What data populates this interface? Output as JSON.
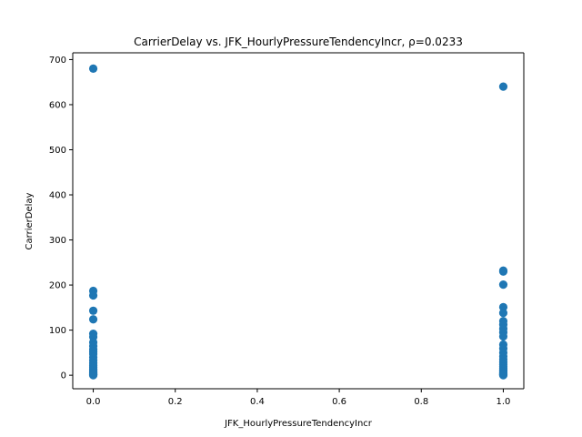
{
  "chart_data": {
    "type": "scatter",
    "title": "CarrierDelay vs. JFK_HourlyPressureTendencyIncr, ρ=0.0233",
    "xlabel": "JFK_HourlyPressureTendencyIncr",
    "ylabel": "CarrierDelay",
    "xlim": [
      -0.05,
      1.05
    ],
    "ylim": [
      -30,
      715
    ],
    "xticks": [
      0.0,
      0.2,
      0.4,
      0.6,
      0.8,
      1.0
    ],
    "xtick_labels": [
      "0.0",
      "0.2",
      "0.4",
      "0.6",
      "0.8",
      "1.0"
    ],
    "yticks": [
      0,
      100,
      200,
      300,
      400,
      500,
      600,
      700
    ],
    "ytick_labels": [
      "0",
      "100",
      "200",
      "300",
      "400",
      "500",
      "600",
      "700"
    ],
    "grid": false,
    "marker_color": "#1f77b4",
    "series": [
      {
        "points": [
          [
            0,
            680
          ],
          [
            0,
            187
          ],
          [
            0,
            177
          ],
          [
            0,
            143
          ],
          [
            0,
            124
          ],
          [
            0,
            92
          ],
          [
            0,
            85
          ],
          [
            0,
            73
          ],
          [
            0,
            65
          ],
          [
            0,
            57
          ],
          [
            0,
            52
          ],
          [
            0,
            47
          ],
          [
            0,
            40
          ],
          [
            0,
            33
          ],
          [
            0,
            27
          ],
          [
            0,
            22
          ],
          [
            0,
            18
          ],
          [
            0,
            14
          ],
          [
            0,
            11
          ],
          [
            0,
            8
          ],
          [
            0,
            6
          ],
          [
            0,
            4
          ],
          [
            0,
            2
          ],
          [
            0,
            1
          ],
          [
            0,
            0
          ],
          [
            1,
            640
          ],
          [
            1,
            232
          ],
          [
            1,
            230
          ],
          [
            1,
            201
          ],
          [
            1,
            151
          ],
          [
            1,
            138
          ],
          [
            1,
            120
          ],
          [
            1,
            112
          ],
          [
            1,
            103
          ],
          [
            1,
            95
          ],
          [
            1,
            86
          ],
          [
            1,
            68
          ],
          [
            1,
            59
          ],
          [
            1,
            50
          ],
          [
            1,
            42
          ],
          [
            1,
            35
          ],
          [
            1,
            29
          ],
          [
            1,
            24
          ],
          [
            1,
            19
          ],
          [
            1,
            15
          ],
          [
            1,
            12
          ],
          [
            1,
            9
          ],
          [
            1,
            6
          ],
          [
            1,
            4
          ],
          [
            1,
            2
          ],
          [
            1,
            1
          ],
          [
            1,
            0
          ]
        ]
      }
    ]
  }
}
